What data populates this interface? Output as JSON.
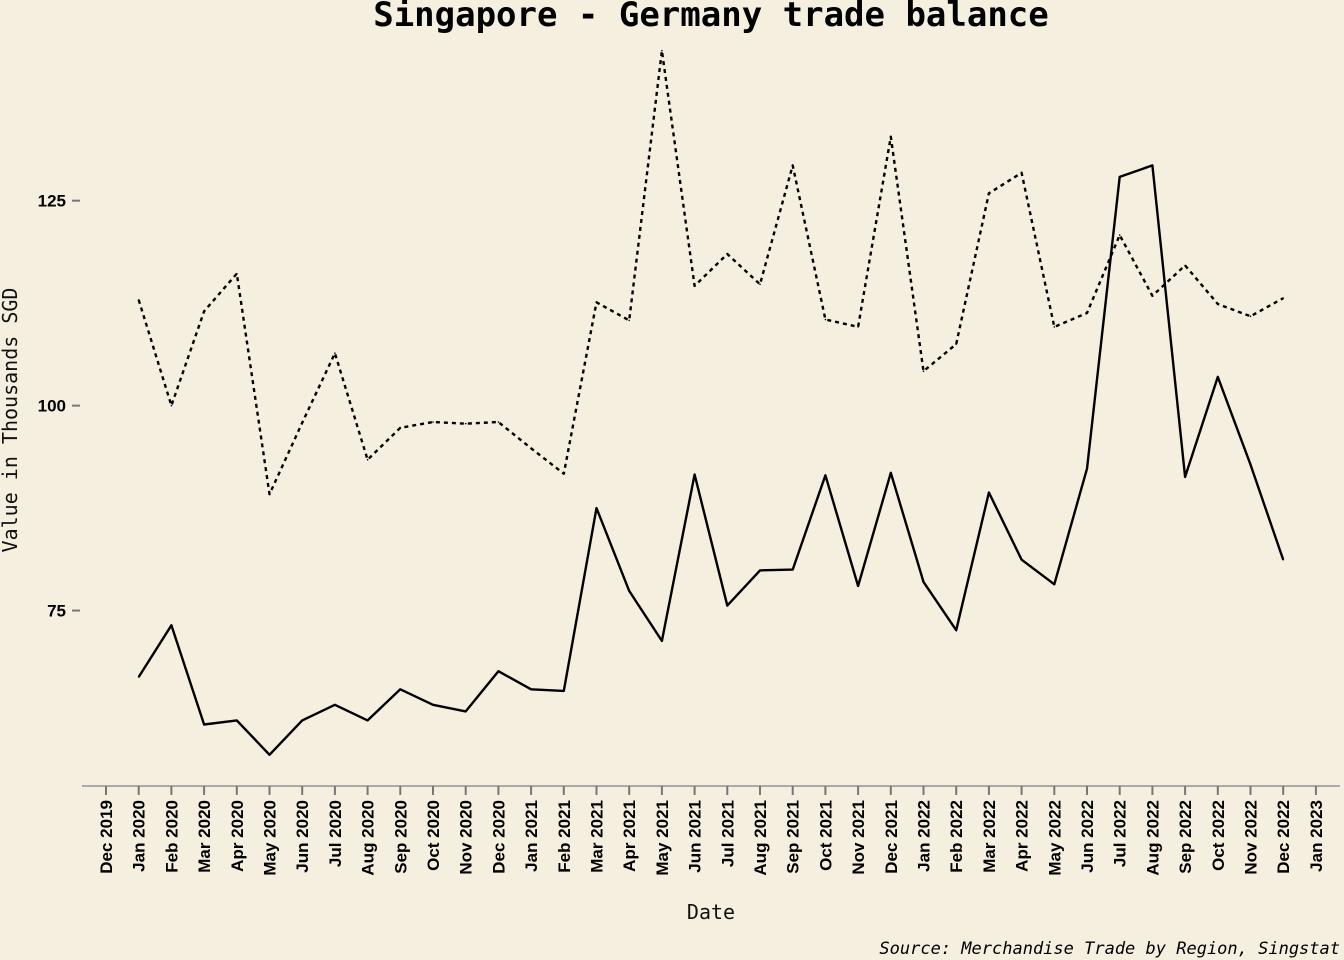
{
  "chart_data": {
    "type": "line",
    "title": "Singapore - Germany trade balance",
    "xlabel": "Date",
    "ylabel": "Value in Thousands SGD",
    "caption": "Source: Merchandise Trade by Region, Singstat",
    "x_ticks": [
      "Dec 2019",
      "Jan 2020",
      "Feb 2020",
      "Mar 2020",
      "Apr 2020",
      "May 2020",
      "Jun 2020",
      "Jul 2020",
      "Aug 2020",
      "Sep 2020",
      "Oct 2020",
      "Nov 2020",
      "Dec 2020",
      "Jan 2021",
      "Feb 2021",
      "Mar 2021",
      "Apr 2021",
      "May 2021",
      "Jun 2021",
      "Jul 2021",
      "Aug 2021",
      "Sep 2021",
      "Oct 2021",
      "Nov 2021",
      "Dec 2021",
      "Jan 2022",
      "Feb 2022",
      "Mar 2022",
      "Apr 2022",
      "May 2022",
      "Jun 2022",
      "Jul 2022",
      "Aug 2022",
      "Sep 2022",
      "Oct 2022",
      "Nov 2022",
      "Dec 2022",
      "Jan 2023"
    ],
    "y_ticks": [
      75,
      100,
      125
    ],
    "ylim": [
      53.6,
      144.6
    ],
    "grid": false,
    "x": [
      "Jan 2020",
      "Feb 2020",
      "Mar 2020",
      "Apr 2020",
      "May 2020",
      "Jun 2020",
      "Jul 2020",
      "Aug 2020",
      "Sep 2020",
      "Oct 2020",
      "Nov 2020",
      "Dec 2020",
      "Jan 2021",
      "Feb 2021",
      "Mar 2021",
      "Apr 2021",
      "May 2021",
      "Jun 2021",
      "Jul 2021",
      "Aug 2021",
      "Sep 2021",
      "Oct 2021",
      "Nov 2021",
      "Dec 2021",
      "Jan 2022",
      "Feb 2022",
      "Mar 2022",
      "Apr 2022",
      "May 2022",
      "Jun 2022",
      "Jul 2022",
      "Aug 2022",
      "Sep 2022",
      "Oct 2022",
      "Nov 2022",
      "Dec 2022"
    ],
    "series": [
      {
        "style": "solid",
        "color": "#000000",
        "values": [
          66.9,
          73.2,
          61.1,
          61.6,
          57.4,
          61.6,
          63.5,
          61.6,
          65.4,
          63.5,
          62.7,
          67.6,
          65.4,
          65.2,
          87.5,
          77.4,
          71.3,
          91.6,
          75.6,
          79.9,
          80.0,
          91.5,
          78.0,
          91.8,
          78.5,
          72.6,
          89.4,
          81.2,
          78.2,
          92.3,
          127.9,
          129.3,
          91.3,
          103.5,
          92.8,
          81.2
        ]
      },
      {
        "style": "dashed",
        "color": "#000000",
        "values": [
          112.9,
          100.0,
          111.5,
          116.1,
          89.2,
          97.9,
          106.4,
          93.4,
          97.3,
          98.0,
          97.8,
          98.0,
          94.8,
          91.7,
          112.6,
          110.4,
          143.3,
          114.6,
          118.5,
          114.8,
          129.3,
          110.5,
          109.6,
          132.8,
          104.2,
          107.5,
          125.9,
          128.4,
          109.6,
          111.3,
          120.8,
          113.4,
          117.1,
          112.4,
          110.9,
          113.1
        ]
      }
    ]
  }
}
